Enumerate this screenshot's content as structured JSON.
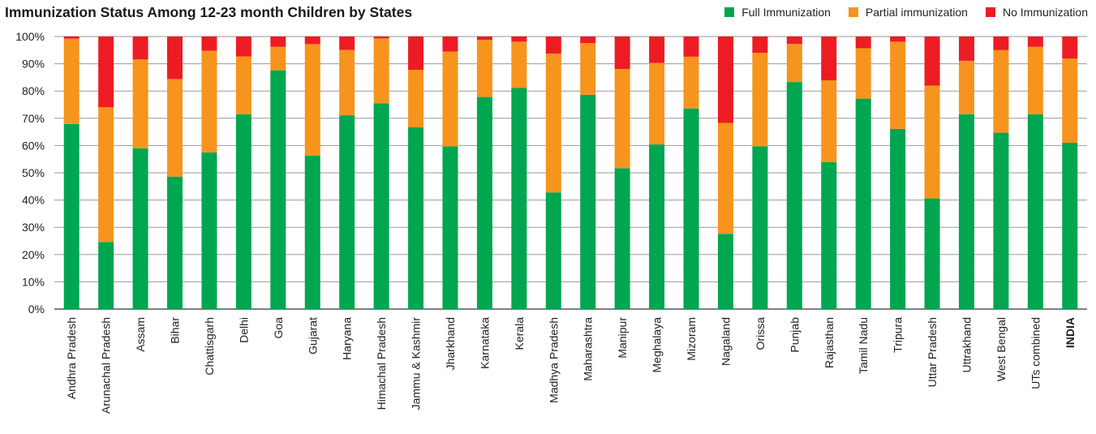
{
  "chart_data": {
    "type": "bar",
    "stacked": true,
    "title": "Immunization Status Among 12-23 month Children by States",
    "xlabel": "",
    "ylabel": "",
    "ylim": [
      0,
      100
    ],
    "y_ticks": [
      "0%",
      "10%",
      "20%",
      "30%",
      "40%",
      "50%",
      "60%",
      "70%",
      "80%",
      "90%",
      "100%"
    ],
    "grid": "horizontal",
    "legend_position": "top-right",
    "categories": [
      "Andhra Pradesh",
      "Arunachal Pradesh",
      "Assam",
      "Bihar",
      "Chattisgarh",
      "Delhi",
      "Goa",
      "Gujarat",
      "Haryana",
      "Himachal Pradesh",
      "Jammu  & Kashmir",
      "Jharkhand",
      "Karnataka",
      "Kerala",
      "Madhya Pradesh",
      "Maharashtra",
      "Manipur",
      "Meghalaya",
      "Mizoram",
      "Nagaland",
      "Orissa",
      "Punjab",
      "Rajasthan",
      "Tamil Nadu",
      "Tripura",
      "Uttar Pradesh",
      "Uttrakhand",
      "West Bengal",
      "UTs combined",
      "INDIA"
    ],
    "emphasized_category": "INDIA",
    "series": [
      {
        "name": "Full Immunization",
        "color": "#00a650",
        "values": [
          67.9,
          24.6,
          59.0,
          48.6,
          57.5,
          71.5,
          87.6,
          56.3,
          71.1,
          75.5,
          66.7,
          59.7,
          77.8,
          81.1,
          42.8,
          78.6,
          51.7,
          60.4,
          73.6,
          27.6,
          59.7,
          83.3,
          53.9,
          77.2,
          66.1,
          40.6,
          71.5,
          64.7,
          71.5,
          61.0
        ]
      },
      {
        "name": "Partial immunization",
        "color": "#f7941d",
        "values": [
          31.3,
          49.5,
          32.6,
          35.8,
          37.3,
          21.2,
          8.6,
          40.9,
          24.0,
          23.8,
          21.1,
          34.8,
          21.0,
          17.0,
          50.9,
          19.0,
          36.4,
          29.9,
          19.0,
          40.7,
          34.3,
          14.0,
          30.0,
          18.5,
          32.0,
          41.4,
          19.6,
          30.3,
          24.7,
          30.9
        ]
      },
      {
        "name": "No Immunization",
        "color": "#ed1c24",
        "values": [
          0.8,
          25.9,
          8.4,
          15.6,
          5.2,
          7.3,
          3.8,
          2.8,
          4.9,
          0.7,
          12.2,
          5.5,
          1.2,
          1.9,
          6.3,
          2.4,
          11.9,
          9.7,
          7.4,
          31.7,
          6.0,
          2.7,
          16.1,
          4.3,
          1.9,
          18.0,
          8.9,
          5.0,
          3.8,
          8.1
        ]
      }
    ]
  }
}
